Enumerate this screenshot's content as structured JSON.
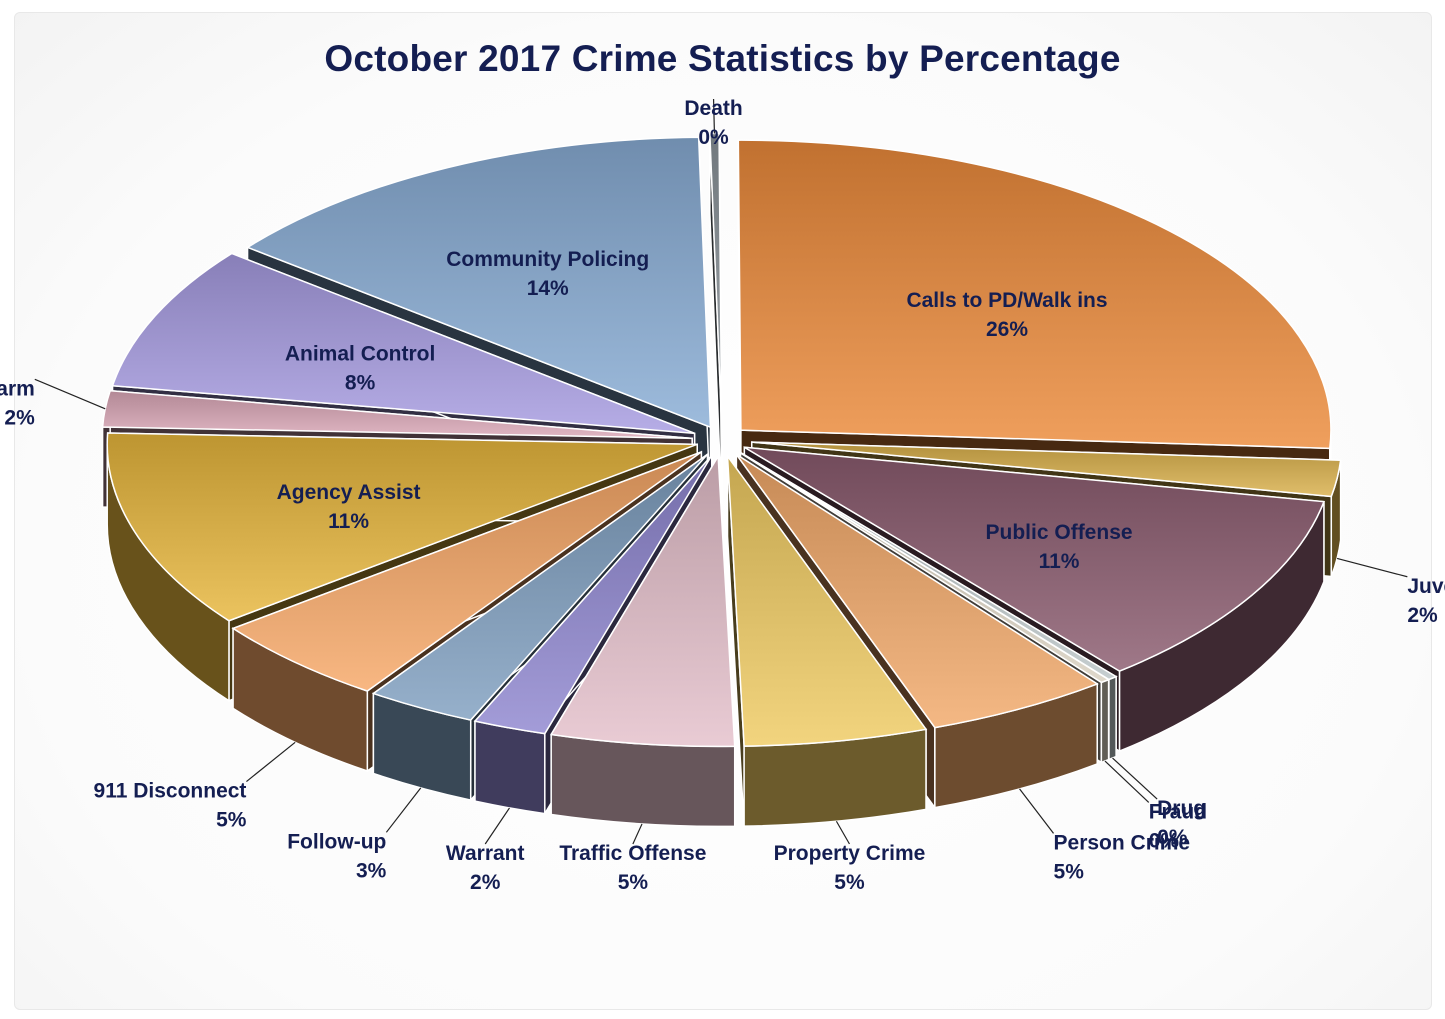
{
  "chart_data": {
    "type": "pie",
    "title": "October 2017 Crime Statistics by Percentage",
    "unit": "%",
    "slices": [
      {
        "label": "Death",
        "value": 0,
        "value_label": "0%",
        "color": "#8a9299"
      },
      {
        "label": "Calls to PD/Walk ins",
        "value": 26,
        "value_label": "26%",
        "color": "#eb8a3a"
      },
      {
        "label": "Juvenile Offense",
        "value": 2,
        "value_label": "2%",
        "color": "#d9b04a"
      },
      {
        "label": "Public Offense",
        "value": 11,
        "value_label": "11%",
        "color": "#8a5a6e"
      },
      {
        "label": "Drug",
        "value": 0,
        "value_label": "0%",
        "color": "#b9c3c6"
      },
      {
        "label": "Fraud",
        "value": 0,
        "value_label": "0%",
        "color": "#d8d0c0"
      },
      {
        "label": "Person Crime",
        "value": 5,
        "value_label": "5%",
        "color": "#f2a869"
      },
      {
        "label": "Property Crime",
        "value": 5,
        "value_label": "5%",
        "color": "#efcb62"
      },
      {
        "label": "Traffic Offense",
        "value": 5,
        "value_label": "5%",
        "color": "#e4bfcb"
      },
      {
        "label": "Warrant",
        "value": 2,
        "value_label": "2%",
        "color": "#8f86cf"
      },
      {
        "label": "Follow-up",
        "value": 3,
        "value_label": "3%",
        "color": "#7f9fbf"
      },
      {
        "label": "911 Disconnect",
        "value": 5,
        "value_label": "5%",
        "color": "#f6a766"
      },
      {
        "label": "Agency Assist",
        "value": 11,
        "value_label": "11%",
        "color": "#e6b63c"
      },
      {
        "label": "Alarm",
        "value": 2,
        "value_label": "2%",
        "color": "#d9a6b6"
      },
      {
        "label": "Animal Control",
        "value": 8,
        "value_label": "8%",
        "color": "#a69be0"
      },
      {
        "label": "Community Policing",
        "value": 14,
        "value_label": "14%",
        "color": "#88acd4"
      }
    ],
    "colors": {
      "title": "#141e52",
      "label_text": "#141e52"
    }
  }
}
